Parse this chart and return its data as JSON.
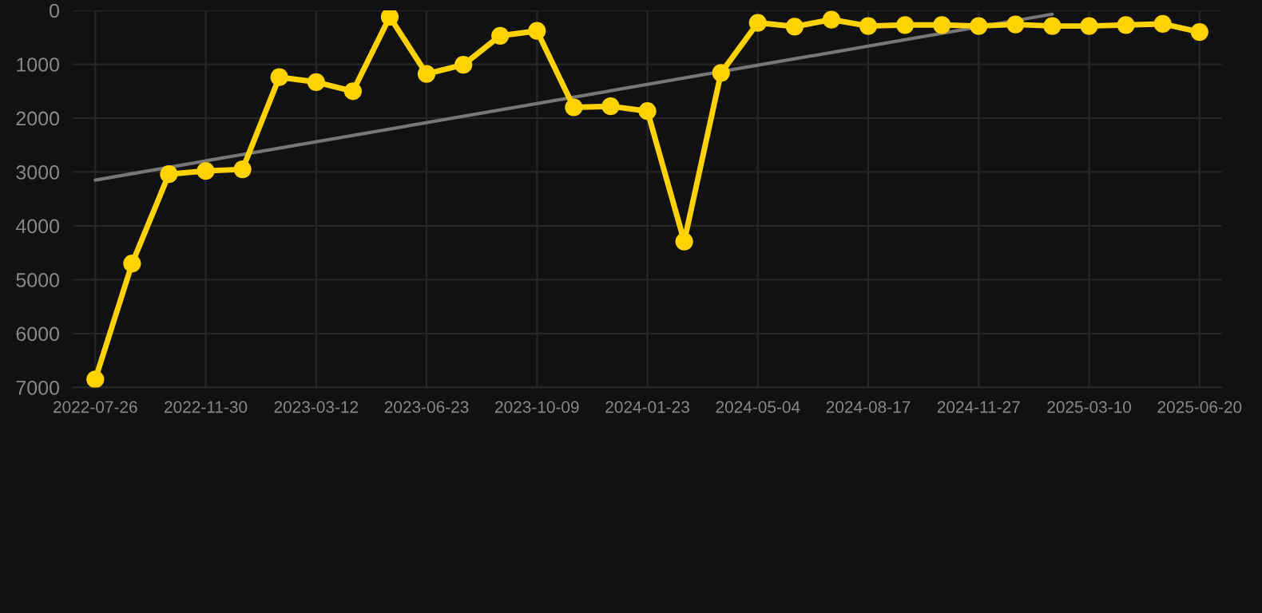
{
  "chart_data": {
    "type": "line",
    "categories": [
      "2022-07-26",
      null,
      null,
      "2022-11-30",
      null,
      null,
      "2023-03-12",
      null,
      null,
      "2023-06-23",
      null,
      null,
      "2023-10-09",
      null,
      null,
      "2024-01-23",
      null,
      null,
      "2024-05-04",
      null,
      null,
      "2024-08-17",
      null,
      null,
      "2024-11-27",
      null,
      null,
      "2025-03-10",
      null,
      null,
      "2025-06-20"
    ],
    "series": [
      {
        "color": "#ffd200",
        "marker": "circle",
        "values": [
          6850,
          4700,
          3040,
          2980,
          2950,
          1240,
          1330,
          1500,
          120,
          1180,
          1010,
          470,
          380,
          1800,
          1780,
          1870,
          4290,
          1160,
          230,
          300,
          170,
          290,
          270,
          270,
          290,
          260,
          290,
          290,
          270,
          250,
          400
        ]
      },
      {
        "type": "line",
        "color": "#777777",
        "marker": "none",
        "values": [
          3150,
          null,
          null,
          null,
          null,
          null,
          null,
          null,
          null,
          null,
          null,
          null,
          null,
          null,
          null,
          null,
          null,
          null,
          null,
          null,
          null,
          null,
          null,
          null,
          null,
          null,
          70,
          null,
          null,
          null,
          null
        ]
      }
    ],
    "ylim": [
      7000,
      0
    ],
    "yticks": [
      0,
      1000,
      2000,
      3000,
      4000,
      5000,
      6000,
      7000
    ],
    "grid": true,
    "legend": false
  }
}
